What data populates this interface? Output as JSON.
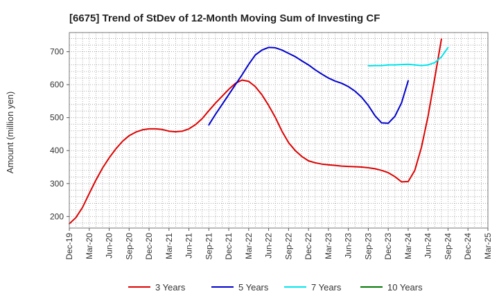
{
  "chart_data": {
    "type": "line",
    "title": "[6675]  Trend of StDev of 12-Month Moving Sum of Investing CF",
    "xlabel": "",
    "ylabel": "Amount (million yen)",
    "ylim": [
      165,
      758
    ],
    "yticks": [
      200,
      300,
      400,
      500,
      600,
      700
    ],
    "xticks": [
      "Dec-19",
      "Mar-20",
      "Jun-20",
      "Sep-20",
      "Dec-20",
      "Mar-21",
      "Jun-21",
      "Sep-21",
      "Dec-21",
      "Mar-22",
      "Jun-22",
      "Sep-22",
      "Dec-22",
      "Mar-23",
      "Jun-23",
      "Sep-23",
      "Dec-23",
      "Mar-24",
      "Jun-24",
      "Sep-24",
      "Dec-24",
      "Mar-25"
    ],
    "grid": true,
    "legend_position": "bottom",
    "series": [
      {
        "name": "3 Years",
        "color": "#dd0000",
        "start": "Dec-19",
        "values": [
          178,
          197,
          228,
          270,
          310,
          347,
          378,
          405,
          428,
          445,
          456,
          463,
          466,
          466,
          464,
          459,
          457,
          459,
          466,
          479,
          497,
          521,
          544,
          565,
          586,
          604,
          614,
          610,
          594,
          569,
          537,
          501,
          459,
          424,
          400,
          382,
          369,
          363,
          359,
          357,
          355,
          353,
          352,
          351,
          350,
          348,
          345,
          340,
          333,
          321,
          305,
          306,
          340,
          410,
          505,
          620,
          738
        ]
      },
      {
        "name": "5 Years",
        "color": "#0000cc",
        "start": "Sep-21",
        "values": [
          478,
          510,
          540,
          570,
          600,
          630,
          662,
          690,
          705,
          713,
          712,
          705,
          695,
          685,
          672,
          660,
          645,
          632,
          620,
          611,
          604,
          594,
          580,
          562,
          537,
          506,
          484,
          483,
          504,
          545,
          612
        ]
      },
      {
        "name": "7 Years",
        "color": "#00e5ee",
        "start": "Sep-23",
        "values": [
          657,
          658,
          658,
          660,
          660,
          661,
          662,
          660,
          658,
          660,
          667,
          684,
          713
        ]
      },
      {
        "name": "10 Years",
        "color": "#007700",
        "start": "Sep-24",
        "values": []
      }
    ]
  }
}
